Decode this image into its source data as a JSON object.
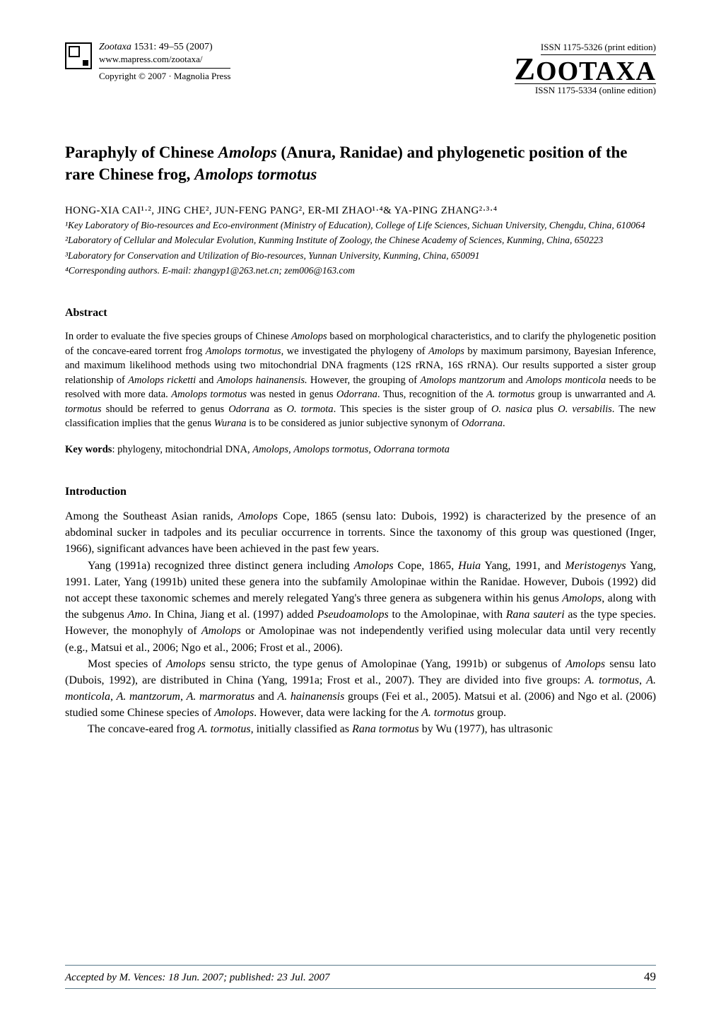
{
  "colors": {
    "text": "#000000",
    "background": "#ffffff",
    "rule": "#5a7a8a"
  },
  "typography": {
    "body_family": "Times New Roman",
    "title_fontsize_pt": 17,
    "body_fontsize_pt": 12,
    "abstract_fontsize_pt": 11,
    "affil_fontsize_pt": 10
  },
  "header": {
    "journal_citation_italic": "Zootaxa",
    "journal_citation_rest": " 1531: 49–55   (2007)",
    "url": "www.mapress.com/zootaxa/",
    "copyright": "Copyright © 2007  ·  Magnolia Press",
    "issn_print": "ISSN 1175-5326  (print edition)",
    "logo": "ZOOTAXA",
    "issn_online": "ISSN 1175-5334 (online edition)"
  },
  "title": {
    "pre": "Paraphyly of Chinese ",
    "ital1": "Amolops",
    "mid": " (Anura, Ranidae) and phylogenetic position of the rare Chinese frog, ",
    "ital2": "Amolops tormotus"
  },
  "authors_line": "HONG-XIA CAI¹·², JING CHE², JUN-FENG PANG², ER-MI ZHAO¹·⁴& YA-PING ZHANG²·³·⁴",
  "affiliations": {
    "a1": "¹Key Laboratory of Bio-resources and Eco-environment (Ministry of Education), College of Life Sciences, Sichuan University, Chengdu, China, 610064",
    "a2": "²Laboratory of Cellular and Molecular Evolution, Kunming Institute of Zoology, the Chinese Academy of Sciences, Kunming, China, 650223",
    "a3": "³Laboratory for Conservation and Utilization of Bio-resources, Yunnan University, Kunming, China, 650091",
    "a4": "⁴Corresponding authors. E-mail: zhangyp1@263.net.cn; zem006@163.com"
  },
  "abstract": {
    "heading": "Abstract",
    "body_html": "In order to evaluate the five species groups of Chinese <span class='ital'>Amolops</span> based on morphological characteristics, and to clarify the phylogenetic position of the concave-eared torrent frog <span class='ital'>Amolops tormotus</span>, we investigated the phylogeny of <span class='ital'>Amolops</span> by maximum parsimony, Bayesian Inference, and maximum likelihood methods using two mitochondrial DNA fragments (12S rRNA, 16S rRNA). Our results supported a sister group relationship of <span class='ital'>Amolops ricketti</span> and <span class='ital'>Amolops hainanensis.</span> However, the grouping of <span class='ital'>Amolops mantzorum</span> and <span class='ital'>Amolops monticola</span> needs to be resolved with more data. <span class='ital'>Amolops tormotus</span> was nested in genus <span class='ital'>Odorrana</span>. Thus, recognition of the <span class='ital'>A. tormotus</span> group is unwarranted and <span class='ital'>A. tormotus</span> should be referred to genus <span class='ital'>Odorrana</span> as <span class='ital'>O. tormota</span>. This species is the sister group of <span class='ital'>O. nasica</span> plus <span class='ital'>O. versabilis</span>. The new classification implies that the genus <span class='ital'>Wurana</span> is to be considered as junior subjective synonym of <span class='ital'>Odorrana</span>."
  },
  "keywords": {
    "label": "Key words",
    "text_html": ": phylogeny, mitochondrial DNA, <span class='ital'>Amolops</span>, <span class='ital'>Amolops tormotus, Odorrana tormota</span>"
  },
  "introduction": {
    "heading": "Introduction",
    "p1_html": "Among the Southeast Asian ranids, <span class='ital'>Amolops</span> Cope, 1865 (sensu lato: Dubois, 1992) is characterized by the presence of an abdominal sucker in tadpoles and its peculiar occurrence in torrents. Since the taxonomy of this group was questioned (Inger, 1966), significant advances have been achieved in the past few years.",
    "p2_html": "Yang (1991a) recognized three distinct genera including <span class='ital'>Amolops</span> Cope, 1865, <span class='ital'>Huia</span> Yang, 1991, and <span class='ital'>Meristogenys</span> Yang, 1991. Later, Yang (1991b) united these genera into the subfamily Amolopinae within the Ranidae. However, Dubois (1992) did not accept these taxonomic schemes and merely relegated Yang's three genera as subgenera within his genus <span class='ital'>Amolops</span>, along with the subgenus <span class='ital'>Amo</span>. In China, Jiang et al. (1997) added <span class='ital'>Pseudoamolops</span> to the Amolopinae, with <span class='ital'>Rana sauteri</span> as the type species. However, the monophyly of <span class='ital'>Amolops</span> or Amolopinae was not independently verified using molecular data until very recently (e.g., Matsui et al., 2006; Ngo et al., 2006; Frost et al., 2006).",
    "p3_html": "Most species of <span class='ital'>Amolops</span> sensu stricto, the type genus of Amolopinae (Yang, 1991b) or subgenus of <span class='ital'>Amolops</span> sensu lato (Dubois, 1992), are distributed in China (Yang, 1991a; Frost et al., 2007). They are divided into five groups: <span class='ital'>A. tormotus</span>, <span class='ital'>A. monticola</span>, <span class='ital'>A. mantzorum</span>, <span class='ital'>A. marmoratus</span> and <span class='ital'>A. hainanensis</span> groups (Fei et al., 2005). Matsui et al. (2006) and Ngo et al. (2006) studied some Chinese species of <span class='ital'>Amolops</span>. However, data were lacking for the <span class='ital'>A. tormotus</span> group.",
    "p4_html": "The concave-eared frog <span class='ital'>A. tormotus,</span> initially classified as <span class='ital'>Rana tormotus</span> by Wu (1977), has ultrasonic"
  },
  "footer": {
    "accepted": "Accepted by M. Vences: 18 Jun. 2007; published: 23 Jul. 2007",
    "page": "49"
  }
}
